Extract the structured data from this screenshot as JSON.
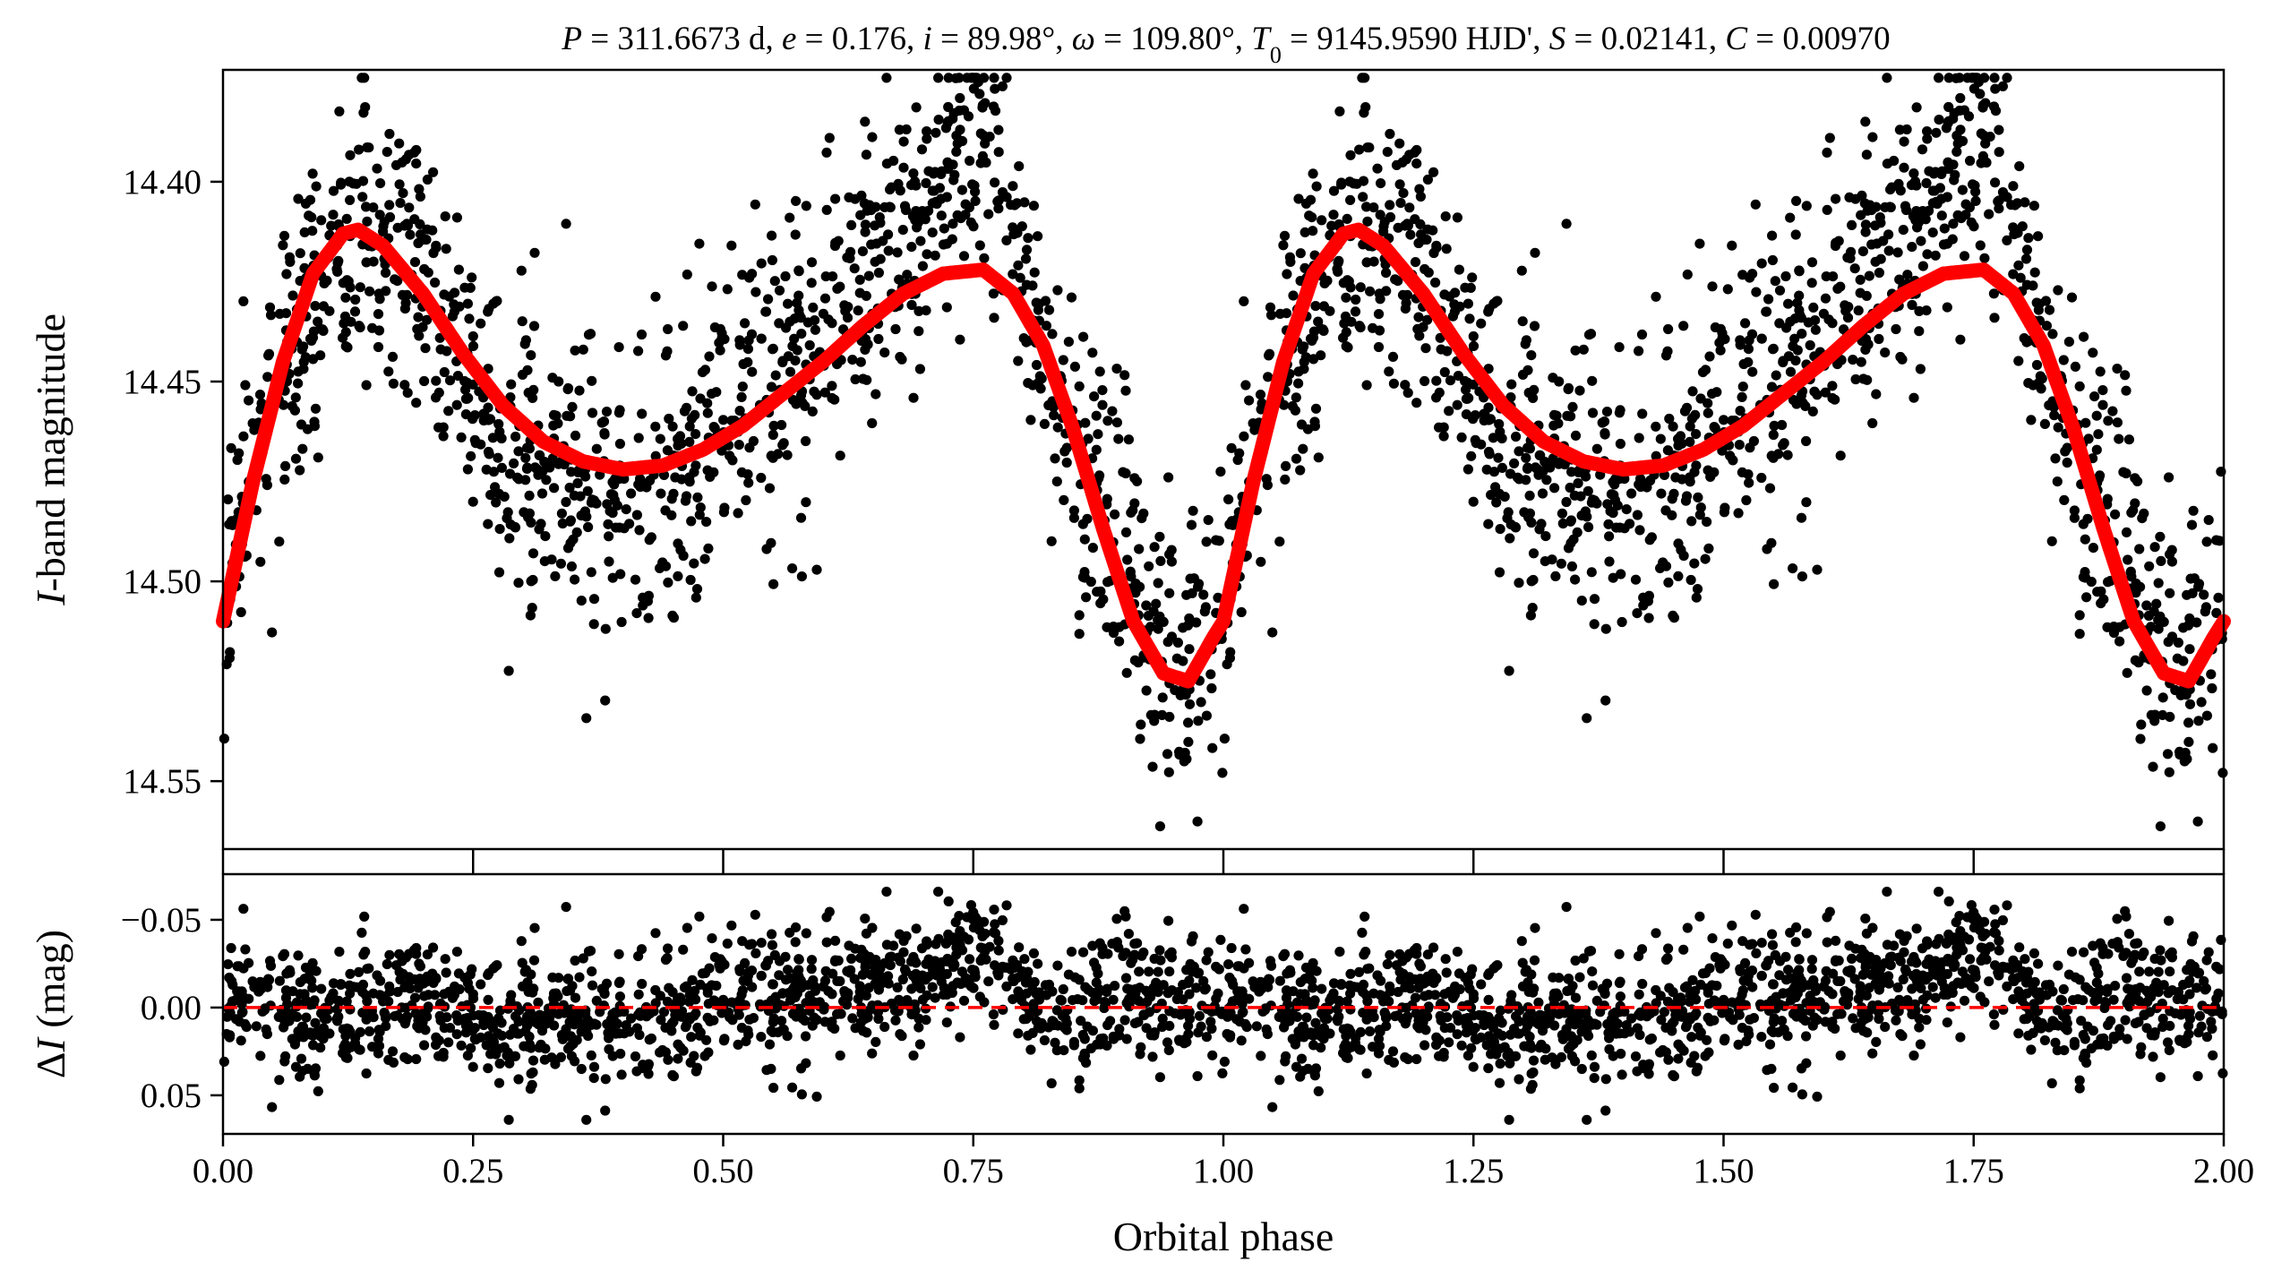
{
  "title": {
    "parts": [
      {
        "text": "P",
        "italic": true
      },
      {
        "text": " = 311.6673 d, ",
        "italic": false
      },
      {
        "text": "e",
        "italic": true
      },
      {
        "text": " = 0.176, ",
        "italic": false
      },
      {
        "text": "i",
        "italic": true
      },
      {
        "text": " = 89.98°, ",
        "italic": false
      },
      {
        "text": "ω",
        "italic": true
      },
      {
        "text": " = 109.80°, ",
        "italic": false
      },
      {
        "text": "T",
        "italic": true
      },
      {
        "text": "0",
        "italic": false,
        "sub": true
      },
      {
        "text": " = 9145.9590 HJD', ",
        "italic": false
      },
      {
        "text": "S",
        "italic": true
      },
      {
        "text": " = 0.02141, ",
        "italic": false
      },
      {
        "text": "C",
        "italic": true
      },
      {
        "text": " = 0.00970",
        "italic": false
      }
    ]
  },
  "xlabel": "Orbital phase",
  "top_ylabel": {
    "italic": "I",
    "rest": "-band magnitude"
  },
  "bottom_ylabel": {
    "prefix": "Δ",
    "italic": "I",
    "rest": " (mag)"
  },
  "colors": {
    "points": "#000000",
    "model": "#ff0000",
    "zero_line": "#ff0000"
  },
  "chart_data": [
    {
      "type": "scatter",
      "panel": "light-curve",
      "xlim": [
        0.0,
        2.0
      ],
      "ylim": [
        14.372,
        14.567
      ],
      "y_inverted": true,
      "x_ticks": [
        0.0,
        0.25,
        0.5,
        0.75,
        1.0,
        1.25,
        1.5,
        1.75,
        2.0
      ],
      "y_ticks": [
        14.4,
        14.45,
        14.5,
        14.55
      ],
      "y_tick_labels": [
        "14.40",
        "14.45",
        "14.50",
        "14.55"
      ],
      "grid": false,
      "observations_trend": {
        "phase": [
          0.0,
          0.02,
          0.05,
          0.08,
          0.11,
          0.14,
          0.17,
          0.2,
          0.23,
          0.26,
          0.3,
          0.34,
          0.38,
          0.42,
          0.46,
          0.5,
          0.54,
          0.58,
          0.62,
          0.66,
          0.7,
          0.73,
          0.76,
          0.79,
          0.82,
          0.85,
          0.88,
          0.91,
          0.94,
          0.96,
          0.98,
          1.0
        ],
        "magnitude": [
          14.51,
          14.48,
          14.45,
          14.43,
          14.42,
          14.415,
          14.42,
          14.425,
          14.44,
          14.46,
          14.47,
          14.48,
          14.48,
          14.48,
          14.47,
          14.455,
          14.45,
          14.445,
          14.43,
          14.42,
          14.41,
          14.395,
          14.39,
          14.41,
          14.44,
          14.465,
          14.48,
          14.5,
          14.52,
          14.525,
          14.515,
          14.51
        ],
        "scatter_mag": 0.018,
        "n_points_per_cycle": 1300
      },
      "model": {
        "name": "",
        "phase": [
          0.0,
          0.03,
          0.06,
          0.09,
          0.12,
          0.135,
          0.16,
          0.2,
          0.24,
          0.28,
          0.32,
          0.36,
          0.4,
          0.44,
          0.48,
          0.52,
          0.56,
          0.6,
          0.64,
          0.68,
          0.72,
          0.76,
          0.79,
          0.82,
          0.85,
          0.88,
          0.91,
          0.94,
          0.965,
          0.99,
          1.0
        ],
        "magnitude": [
          14.51,
          14.475,
          14.445,
          14.423,
          14.413,
          14.412,
          14.416,
          14.428,
          14.443,
          14.456,
          14.465,
          14.47,
          14.472,
          14.471,
          14.467,
          14.461,
          14.453,
          14.445,
          14.436,
          14.428,
          14.423,
          14.422,
          14.428,
          14.441,
          14.462,
          14.487,
          14.51,
          14.523,
          14.525,
          14.514,
          14.51
        ]
      }
    },
    {
      "type": "scatter",
      "panel": "residuals",
      "xlim": [
        0.0,
        2.0
      ],
      "ylim": [
        -0.076,
        0.072
      ],
      "y_inverted": true,
      "x_ticks": [
        0.0,
        0.25,
        0.5,
        0.75,
        1.0,
        1.25,
        1.5,
        1.75,
        2.0
      ],
      "x_tick_labels": [
        "0.00",
        "0.25",
        "0.50",
        "0.75",
        "1.00",
        "1.25",
        "1.50",
        "1.75",
        "2.00"
      ],
      "y_ticks": [
        -0.05,
        0.0,
        0.05
      ],
      "y_tick_labels": [
        "−0.05",
        "0.00",
        "0.05"
      ],
      "grid": false,
      "residual_scatter_mag": 0.016,
      "residual_range": [
        -0.066,
        0.064
      ],
      "zero_line": {
        "value": 0.0,
        "style": "dashed"
      }
    }
  ]
}
